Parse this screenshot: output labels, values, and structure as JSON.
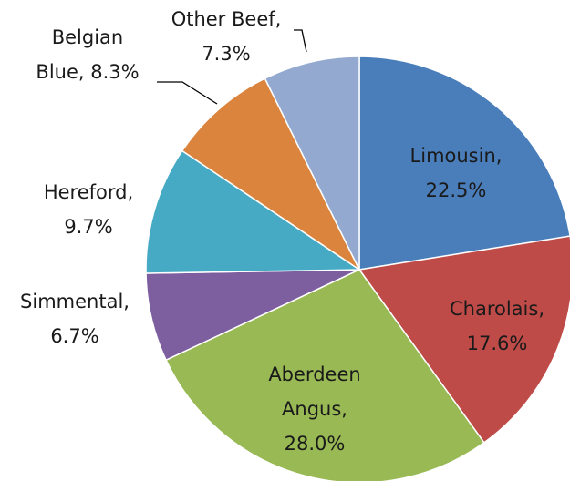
{
  "chart_data": {
    "type": "pie",
    "labels": [
      [
        "Limousin,",
        "22.5%"
      ],
      [
        "Charolais,",
        "17.6%"
      ],
      [
        "Aberdeen",
        "Angus,",
        "28.0%"
      ],
      [
        "Simmental,",
        "6.7%"
      ],
      [
        "Hereford,",
        "9.7%"
      ],
      [
        "Belgian",
        "Blue, 8.3%"
      ],
      [
        "Other Beef,",
        "7.3%"
      ]
    ],
    "values": [
      22.5,
      17.6,
      28.0,
      6.7,
      9.7,
      8.3,
      7.3
    ],
    "colors": [
      "#4a7ebb",
      "#be4b48",
      "#98b954",
      "#7d5fa0",
      "#46aac5",
      "#db843d",
      "#93a9cf"
    ]
  }
}
